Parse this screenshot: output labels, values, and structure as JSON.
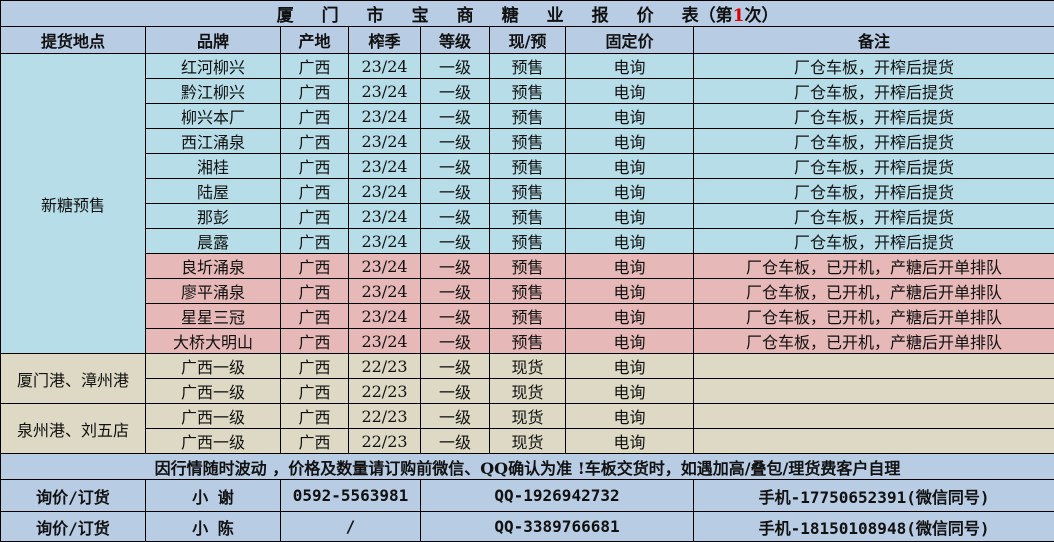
{
  "title": {
    "main": "厦门市宝商糖业报价表",
    "prefix": "（第",
    "number": "1",
    "suffix": "次）",
    "number_color": "#e00000"
  },
  "headers": [
    "提货地点",
    "品牌",
    "产地",
    "榨季",
    "等级",
    "现/预",
    "固定价",
    "备注"
  ],
  "colors": {
    "header": "#b8cce4",
    "new_sugar": "#b7dee8",
    "opened": "#e6b8b7",
    "spot": "#ddd9c4"
  },
  "groups": [
    {
      "location": "新糖预售",
      "rows": [
        {
          "brand": "红河柳兴",
          "origin": "广西",
          "season": "23/24",
          "grade": "一级",
          "type": "预售",
          "price": "电询",
          "remark": "厂仓车板，开榨后提货",
          "tone": "blue"
        },
        {
          "brand": "黔江柳兴",
          "origin": "广西",
          "season": "23/24",
          "grade": "一级",
          "type": "预售",
          "price": "电询",
          "remark": "厂仓车板，开榨后提货",
          "tone": "blue"
        },
        {
          "brand": "柳兴本厂",
          "origin": "广西",
          "season": "23/24",
          "grade": "一级",
          "type": "预售",
          "price": "电询",
          "remark": "厂仓车板，开榨后提货",
          "tone": "blue"
        },
        {
          "brand": "西江涌泉",
          "origin": "广西",
          "season": "23/24",
          "grade": "一级",
          "type": "预售",
          "price": "电询",
          "remark": "厂仓车板，开榨后提货",
          "tone": "blue"
        },
        {
          "brand": "湘桂",
          "origin": "广西",
          "season": "23/24",
          "grade": "一级",
          "type": "预售",
          "price": "电询",
          "remark": "厂仓车板，开榨后提货",
          "tone": "blue"
        },
        {
          "brand": "陆屋",
          "origin": "广西",
          "season": "23/24",
          "grade": "一级",
          "type": "预售",
          "price": "电询",
          "remark": "厂仓车板，开榨后提货",
          "tone": "blue"
        },
        {
          "brand": "那彭",
          "origin": "广西",
          "season": "23/24",
          "grade": "一级",
          "type": "预售",
          "price": "电询",
          "remark": "厂仓车板，开榨后提货",
          "tone": "blue"
        },
        {
          "brand": "晨露",
          "origin": "广西",
          "season": "23/24",
          "grade": "一级",
          "type": "预售",
          "price": "电询",
          "remark": "厂仓车板，开榨后提货",
          "tone": "blue"
        },
        {
          "brand": "良圻涌泉",
          "origin": "广西",
          "season": "23/24",
          "grade": "一级",
          "type": "预售",
          "price": "电询",
          "remark": "厂仓车板，已开机，产糖后开单排队",
          "tone": "pink"
        },
        {
          "brand": "廖平涌泉",
          "origin": "广西",
          "season": "23/24",
          "grade": "一级",
          "type": "预售",
          "price": "电询",
          "remark": "厂仓车板，已开机，产糖后开单排队",
          "tone": "pink"
        },
        {
          "brand": "星星三冠",
          "origin": "广西",
          "season": "23/24",
          "grade": "一级",
          "type": "预售",
          "price": "电询",
          "remark": "厂仓车板，已开机，产糖后开单排队",
          "tone": "pink"
        },
        {
          "brand": "大桥大明山",
          "origin": "广西",
          "season": "23/24",
          "grade": "一级",
          "type": "预售",
          "price": "电询",
          "remark": "厂仓车板，已开机，产糖后开单排队",
          "tone": "pink"
        }
      ],
      "tone": "blue"
    },
    {
      "location": "厦门港、漳州港",
      "tone": "tan",
      "rows": [
        {
          "brand": "广西一级",
          "origin": "广西",
          "season": "22/23",
          "grade": "一级",
          "type": "现货",
          "price": "电询",
          "remark": "",
          "tone": "tan"
        },
        {
          "brand": "广西一级",
          "origin": "广西",
          "season": "22/23",
          "grade": "一级",
          "type": "现货",
          "price": "电询",
          "remark": "",
          "tone": "tan"
        }
      ]
    },
    {
      "location": "泉州港、刘五店",
      "tone": "tan",
      "rows": [
        {
          "brand": "广西一级",
          "origin": "广西",
          "season": "22/23",
          "grade": "一级",
          "type": "现货",
          "price": "电询",
          "remark": "",
          "tone": "tan"
        },
        {
          "brand": "广西一级",
          "origin": "广西",
          "season": "22/23",
          "grade": "一级",
          "type": "现货",
          "price": "电询",
          "remark": "",
          "tone": "tan"
        }
      ]
    }
  ],
  "note": "因行情随时波动 ，价格及数量请订购前微信、QQ确认为准 !车板交货时，如遇加高/叠包/理货费客户自理",
  "contacts": [
    {
      "label": "询价/订货",
      "name": "小 谢",
      "phone": "0592-5563981",
      "qq": "QQ-1926942732",
      "mobile": "手机-17750652391(微信同号)"
    },
    {
      "label": "询价/订货",
      "name": "小 陈",
      "phone": "/",
      "qq": "QQ-3389766681",
      "mobile": "手机-18150108948(微信同号)"
    }
  ]
}
